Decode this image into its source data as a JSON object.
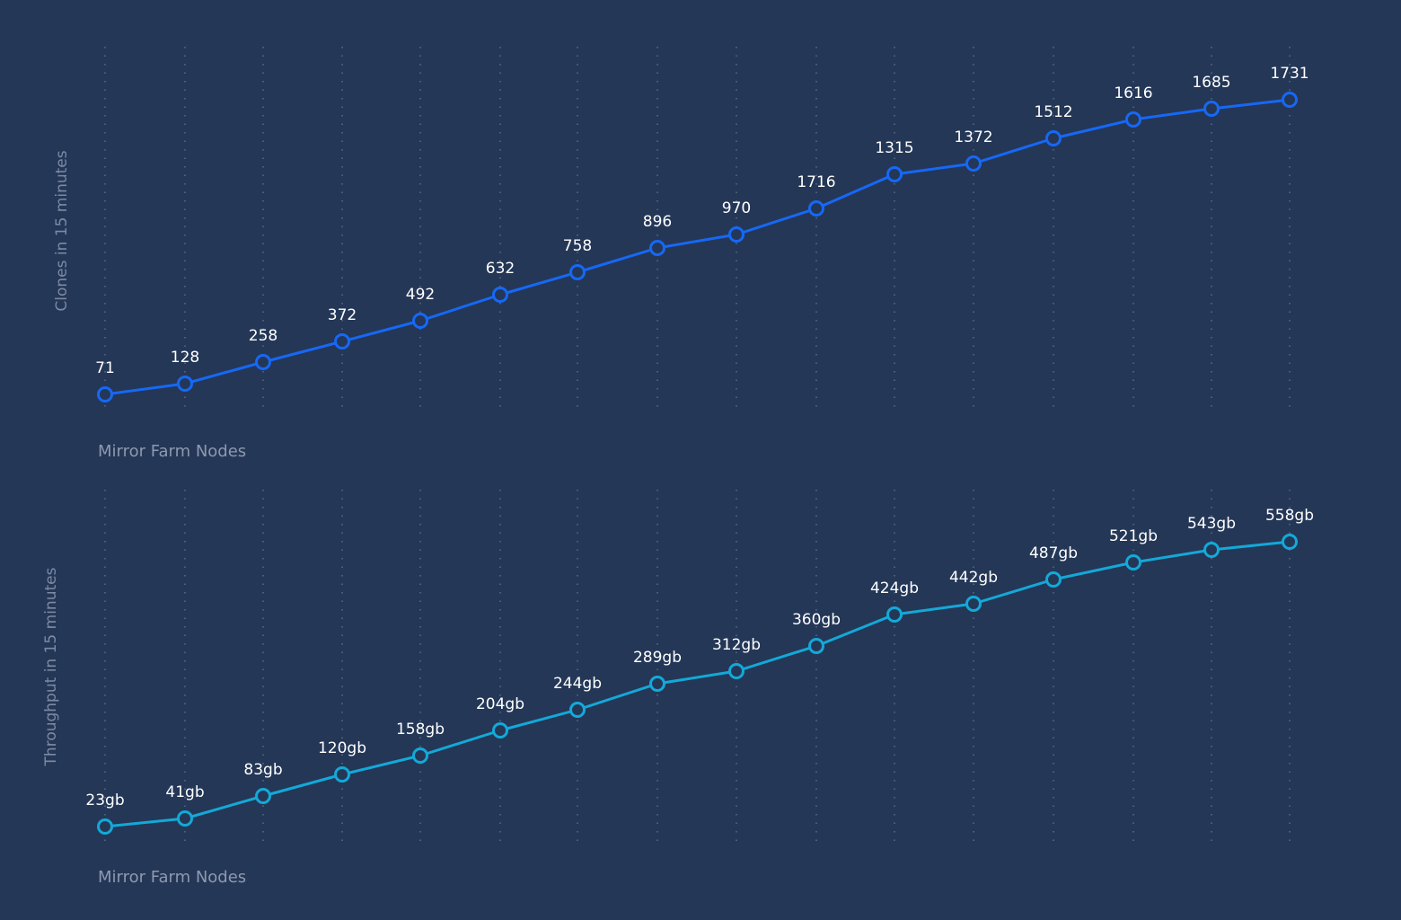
{
  "chart_data": [
    {
      "type": "line",
      "xlabel": "Mirror Farm Nodes",
      "ylabel": "Clones in 15 minutes",
      "grid": "vertical dotted",
      "color": "#1668f5",
      "x": [
        1,
        2,
        3,
        4,
        5,
        6,
        7,
        8,
        9,
        10,
        11,
        12,
        13,
        14,
        15,
        16
      ],
      "values": [
        71,
        128,
        258,
        372,
        492,
        632,
        758,
        896,
        970,
        1716,
        1315,
        1372,
        1512,
        1616,
        1685,
        1731
      ],
      "labels": [
        "71",
        "128",
        "258",
        "372",
        "492",
        "632",
        "758",
        "896",
        "970",
        "1716",
        "1315",
        "1372",
        "1512",
        "1616",
        "1685",
        "1731"
      ]
    },
    {
      "type": "line",
      "xlabel": "Mirror Farm Nodes",
      "ylabel": "Throughput in 15 minutes",
      "grid": "vertical dotted",
      "color": "#13a9d8",
      "unit": "gb",
      "x": [
        1,
        2,
        3,
        4,
        5,
        6,
        7,
        8,
        9,
        10,
        11,
        12,
        13,
        14,
        15,
        16
      ],
      "values": [
        23,
        41,
        83,
        120,
        158,
        204,
        244,
        289,
        312,
        360,
        424,
        442,
        487,
        521,
        543,
        558
      ],
      "labels": [
        "23gb",
        "41gb",
        "83gb",
        "120gb",
        "158gb",
        "204gb",
        "244gb",
        "289gb",
        "312gb",
        "360gb",
        "424gb",
        "442gb",
        "487gb",
        "521gb",
        "543gb",
        "558gb"
      ]
    }
  ]
}
